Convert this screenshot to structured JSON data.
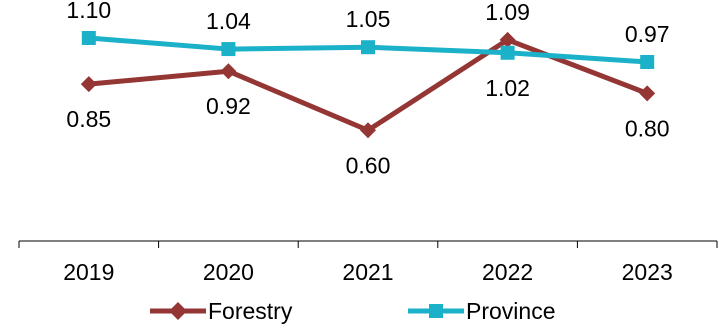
{
  "chart_data": {
    "type": "line",
    "categories": [
      "2019",
      "2020",
      "2021",
      "2022",
      "2023"
    ],
    "series": [
      {
        "name": "Forestry",
        "values": [
          0.85,
          0.92,
          0.6,
          1.09,
          0.8
        ],
        "color": "#943634",
        "marker": "diamond"
      },
      {
        "name": "Province",
        "values": [
          1.1,
          1.04,
          1.05,
          1.02,
          0.97
        ],
        "color": "#1BB1C9",
        "marker": "square"
      }
    ],
    "data_labels": true,
    "ylim": [
      0,
      1.23
    ],
    "grid": false,
    "legend_position": "bottom"
  }
}
